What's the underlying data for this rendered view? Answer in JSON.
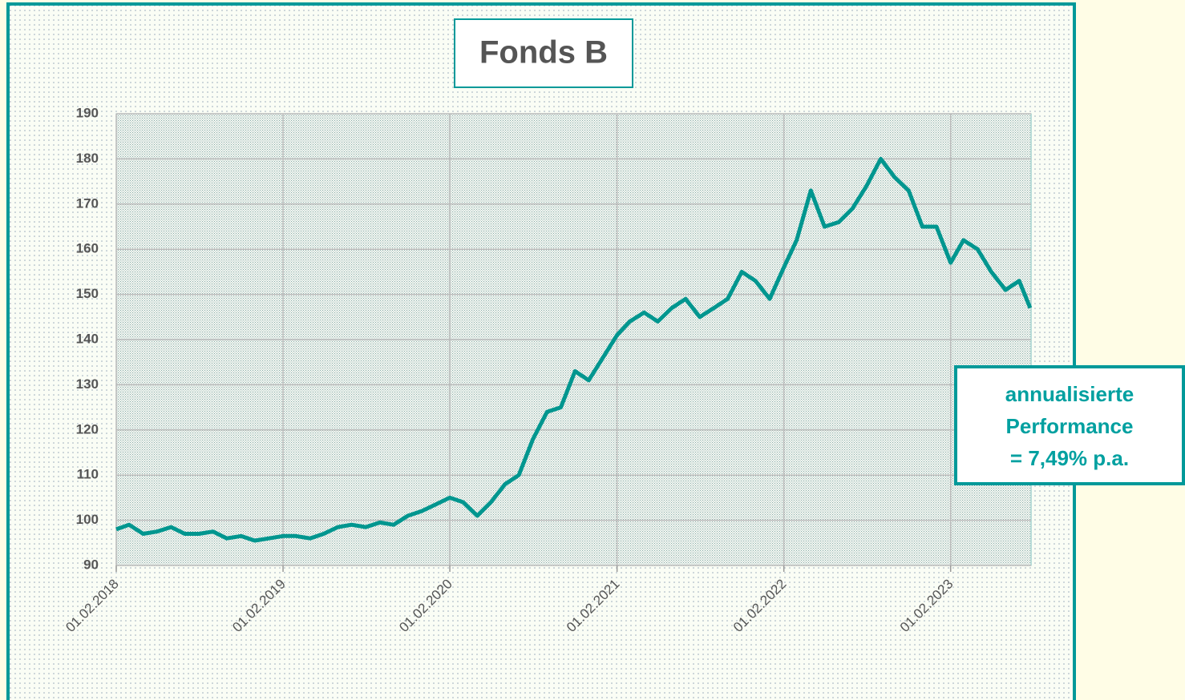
{
  "chart_data": {
    "type": "line",
    "title": "Fonds B",
    "annotation": [
      "annualisierte",
      "Performance",
      "= 7,49% p.a."
    ],
    "x": [
      "2018-02-01",
      "2018-03-01",
      "2018-04-01",
      "2018-05-01",
      "2018-06-01",
      "2018-07-01",
      "2018-08-01",
      "2018-09-01",
      "2018-10-01",
      "2018-11-01",
      "2018-12-01",
      "2019-01-01",
      "2019-02-01",
      "2019-03-01",
      "2019-04-01",
      "2019-05-01",
      "2019-06-01",
      "2019-07-01",
      "2019-08-01",
      "2019-09-01",
      "2019-10-01",
      "2019-11-01",
      "2019-12-01",
      "2020-01-01",
      "2020-02-01",
      "2020-03-01",
      "2020-04-01",
      "2020-05-01",
      "2020-06-01",
      "2020-07-01",
      "2020-08-01",
      "2020-09-01",
      "2020-10-01",
      "2020-11-01",
      "2020-12-01",
      "2021-01-01",
      "2021-02-01",
      "2021-03-01",
      "2021-04-01",
      "2021-05-01",
      "2021-06-01",
      "2021-07-01",
      "2021-08-01",
      "2021-09-01",
      "2021-10-01",
      "2021-11-01",
      "2021-12-01",
      "2022-01-01",
      "2022-02-01",
      "2022-03-01",
      "2022-04-01",
      "2022-05-01",
      "2022-06-01",
      "2022-07-01",
      "2022-08-01",
      "2022-09-01",
      "2022-10-01",
      "2022-11-01",
      "2022-12-01",
      "2023-01-01",
      "2023-02-01",
      "2023-03-01",
      "2023-04-01",
      "2023-05-01",
      "2023-06-01",
      "2023-07-01",
      "2023-07-25"
    ],
    "series": [
      {
        "name": "Fonds B",
        "color": "#00968f",
        "values": [
          98,
          99,
          97,
          97.5,
          98.5,
          97,
          97,
          97.5,
          96,
          96.5,
          95.5,
          96,
          96.5,
          96.5,
          96,
          97,
          98.5,
          99,
          98.5,
          99.5,
          99,
          101,
          102,
          103.5,
          105,
          104,
          101,
          104,
          108,
          110,
          118,
          124,
          125,
          133,
          131,
          136,
          141,
          144,
          146,
          144,
          147,
          149,
          145,
          147,
          149,
          155,
          153,
          149,
          156,
          162,
          173,
          165,
          166,
          169,
          174,
          180,
          176,
          173,
          165,
          165,
          157,
          162,
          160,
          155,
          151,
          153,
          147
        ]
      }
    ],
    "xlim": [
      "2018-02-01",
      "2023-07-27"
    ],
    "xticks": [
      {
        "value": "2018-02-01",
        "label": "01.02.2018"
      },
      {
        "value": "2019-02-01",
        "label": "01.02.2019"
      },
      {
        "value": "2020-02-01",
        "label": "01.02.2020"
      },
      {
        "value": "2021-02-01",
        "label": "01.02.2021"
      },
      {
        "value": "2022-02-01",
        "label": "01.02.2022"
      },
      {
        "value": "2023-02-01",
        "label": "01.02.2023"
      }
    ],
    "ylim": [
      90,
      190
    ],
    "yticks": [
      90,
      100,
      110,
      120,
      130,
      140,
      150,
      160,
      170,
      180,
      190
    ],
    "grid": true
  }
}
